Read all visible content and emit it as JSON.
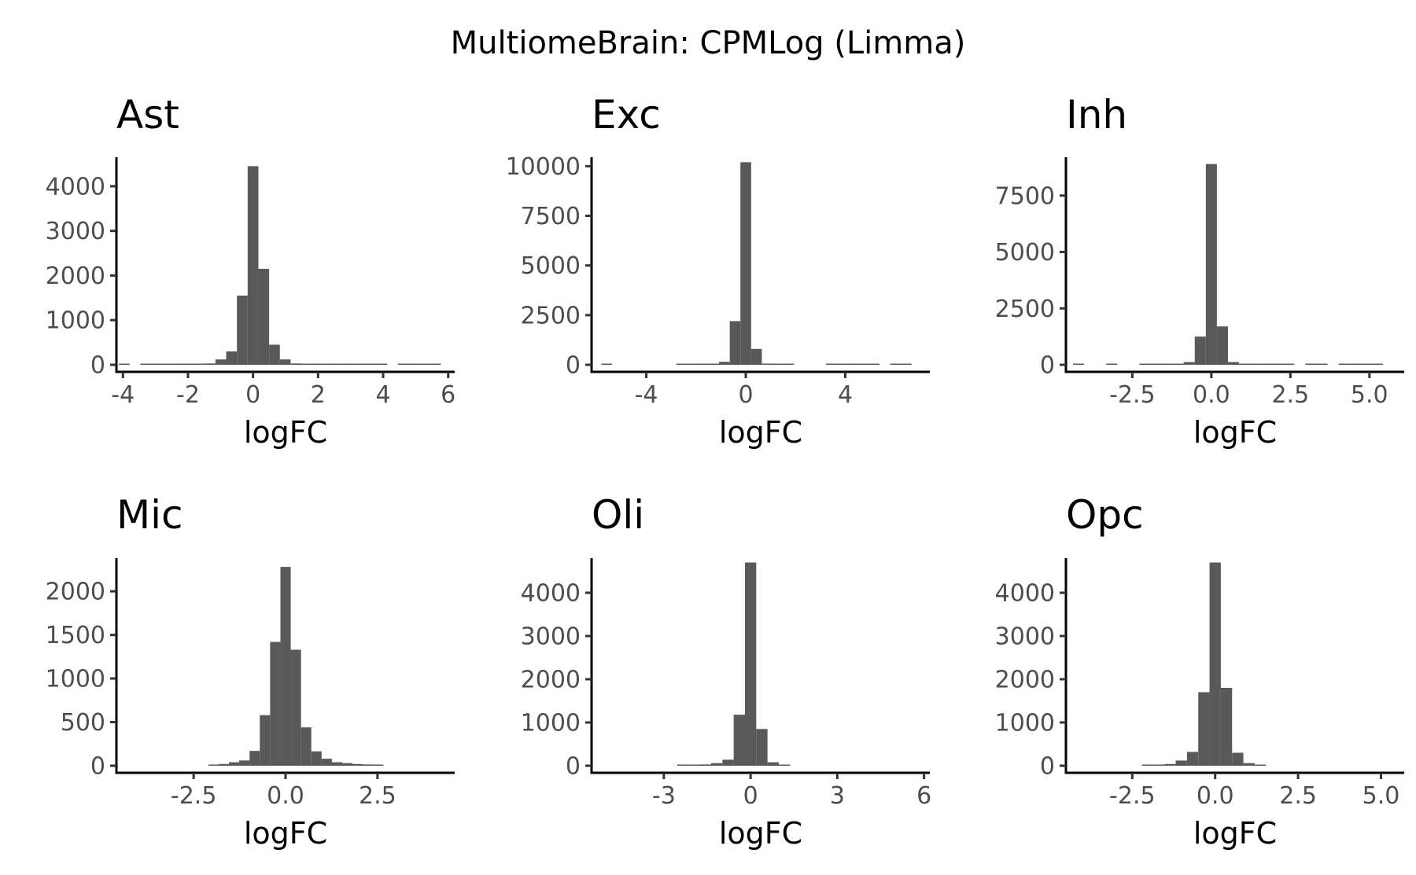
{
  "title": "MultiomeBrain: CPMLog (Limma)",
  "bar_color": "#595959",
  "chart_data": [
    {
      "type": "bar",
      "subtype": "histogram",
      "title": "Ast",
      "xlabel": "logFC",
      "ylabel": "",
      "xlim": [
        -4.2,
        6.2
      ],
      "ylim": [
        0,
        4650
      ],
      "xticks": [
        -4,
        -2,
        0,
        2,
        4,
        6
      ],
      "xtick_labels": [
        "-4",
        "-2",
        "0",
        "2",
        "4",
        "6"
      ],
      "yticks": [
        0,
        1000,
        2000,
        3000,
        4000
      ],
      "ytick_labels": [
        "0",
        "1000",
        "2000",
        "3000",
        "4000"
      ],
      "bin_width": 0.33,
      "bin_centers": [
        -3.96,
        -3.3,
        -2.97,
        -2.64,
        -2.31,
        -1.98,
        -1.65,
        -1.32,
        -0.99,
        -0.66,
        -0.33,
        0.0,
        0.33,
        0.66,
        0.99,
        1.32,
        1.65,
        1.98,
        2.31,
        2.64,
        2.97,
        3.3,
        3.63,
        3.96,
        4.62,
        4.95,
        5.28,
        5.61
      ],
      "values": [
        2,
        3,
        4,
        5,
        6,
        8,
        15,
        30,
        120,
        300,
        1550,
        4450,
        2150,
        450,
        120,
        30,
        12,
        8,
        6,
        4,
        3,
        3,
        2,
        2,
        2,
        2,
        2,
        2
      ]
    },
    {
      "type": "bar",
      "subtype": "histogram",
      "title": "Exc",
      "xlabel": "logFC",
      "ylabel": "",
      "xlim": [
        -6.2,
        7.4
      ],
      "ylim": [
        0,
        10450
      ],
      "xticks": [
        -4,
        0,
        4
      ],
      "xtick_labels": [
        "-4",
        "0",
        "4"
      ],
      "yticks": [
        0,
        2500,
        5000,
        7500,
        10000
      ],
      "ytick_labels": [
        "0",
        "2500",
        "5000",
        "7500",
        "10000"
      ],
      "bin_width": 0.43,
      "bin_centers": [
        -5.59,
        -2.58,
        -2.15,
        -1.72,
        -1.29,
        -0.86,
        -0.43,
        0.0,
        0.43,
        0.86,
        1.29,
        1.72,
        3.44,
        3.87,
        4.3,
        4.73,
        5.16,
        6.02,
        6.45
      ],
      "values": [
        3,
        5,
        6,
        10,
        20,
        150,
        2200,
        10200,
        800,
        60,
        20,
        8,
        5,
        4,
        4,
        3,
        3,
        2,
        2
      ]
    },
    {
      "type": "bar",
      "subtype": "histogram",
      "title": "Inh",
      "xlabel": "logFC",
      "ylabel": "",
      "xlim": [
        -4.6,
        6.1
      ],
      "ylim": [
        0,
        9200
      ],
      "xticks": [
        -2.5,
        0,
        2.5,
        5
      ],
      "xtick_labels": [
        "-2.5",
        "0.0",
        "2.5",
        "5.0"
      ],
      "yticks": [
        0,
        2500,
        5000,
        7500
      ],
      "ytick_labels": [
        "0",
        "2500",
        "5000",
        "7500"
      ],
      "bin_width": 0.35,
      "bin_centers": [
        -4.2,
        -3.15,
        -2.1,
        -1.75,
        -1.4,
        -1.05,
        -0.7,
        -0.35,
        0.0,
        0.35,
        0.7,
        1.05,
        1.4,
        1.75,
        2.1,
        2.45,
        3.15,
        3.5,
        4.2,
        4.55,
        4.9,
        5.25
      ],
      "values": [
        2,
        2,
        4,
        6,
        10,
        25,
        120,
        1250,
        8900,
        1700,
        120,
        30,
        12,
        8,
        5,
        4,
        3,
        3,
        2,
        2,
        2,
        2
      ]
    },
    {
      "type": "bar",
      "subtype": "histogram",
      "title": "Mic",
      "xlabel": "logFC",
      "ylabel": "",
      "xlim": [
        -4.6,
        4.6
      ],
      "ylim": [
        0,
        2380
      ],
      "xticks": [
        -2.5,
        0,
        2.5
      ],
      "xtick_labels": [
        "-2.5",
        "0.0",
        "2.5"
      ],
      "yticks": [
        0,
        500,
        1000,
        1500,
        2000
      ],
      "ytick_labels": [
        "0",
        "500",
        "1000",
        "1500",
        "2000"
      ],
      "bin_width": 0.28,
      "bin_centers": [
        -1.96,
        -1.68,
        -1.4,
        -1.12,
        -0.84,
        -0.56,
        -0.28,
        0.0,
        0.28,
        0.56,
        0.84,
        1.12,
        1.4,
        1.68,
        1.96,
        2.24,
        2.52
      ],
      "values": [
        8,
        20,
        40,
        60,
        170,
        580,
        1420,
        2280,
        1330,
        440,
        165,
        80,
        40,
        30,
        20,
        15,
        8
      ]
    },
    {
      "type": "bar",
      "subtype": "histogram",
      "title": "Oli",
      "xlabel": "logFC",
      "ylabel": "",
      "xlim": [
        -5.5,
        6.2
      ],
      "ylim": [
        0,
        4800
      ],
      "xticks": [
        -3,
        0,
        3,
        6
      ],
      "xtick_labels": [
        "-3",
        "0",
        "3",
        "6"
      ],
      "bin_width": 0.39,
      "yticks": [
        0,
        1000,
        2000,
        3000,
        4000
      ],
      "ytick_labels": [
        "0",
        "1000",
        "2000",
        "3000",
        "4000"
      ],
      "bin_centers": [
        -2.34,
        -1.95,
        -1.56,
        -1.17,
        -0.78,
        -0.39,
        0.0,
        0.39,
        0.78,
        1.17
      ],
      "values": [
        5,
        12,
        30,
        60,
        140,
        1180,
        4700,
        850,
        80,
        10
      ]
    },
    {
      "type": "bar",
      "subtype": "histogram",
      "title": "Opc",
      "xlabel": "logFC",
      "ylabel": "",
      "xlim": [
        -4.5,
        5.7
      ],
      "ylim": [
        0,
        4800
      ],
      "xticks": [
        -2.5,
        0,
        2.5,
        5
      ],
      "xtick_labels": [
        "-2.5",
        "0.0",
        "2.5",
        "5.0"
      ],
      "yticks": [
        0,
        1000,
        2000,
        3000,
        4000
      ],
      "ytick_labels": [
        "0",
        "1000",
        "2000",
        "3000",
        "4000"
      ],
      "bin_width": 0.34,
      "bin_centers": [
        -2.04,
        -1.7,
        -1.36,
        -1.02,
        -0.68,
        -0.34,
        0.0,
        0.34,
        0.68,
        1.02,
        1.36
      ],
      "values": [
        5,
        15,
        40,
        120,
        320,
        1700,
        4700,
        1800,
        300,
        60,
        10
      ]
    }
  ]
}
